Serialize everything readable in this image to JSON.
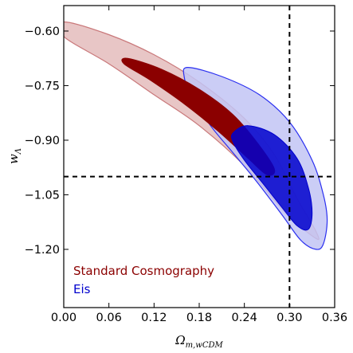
{
  "chart_data": {
    "type": "contour",
    "title": "",
    "xlabel": "Ω",
    "xlabel_sub": "m,wCDM",
    "ylabel": "w",
    "ylabel_sub": "Λ",
    "xlim": [
      0.0,
      0.36
    ],
    "ylim": [
      -1.36,
      -0.53
    ],
    "xticks": [
      0.0,
      0.06,
      0.12,
      0.18,
      0.24,
      0.3,
      0.36
    ],
    "xtick_labels": [
      "0.00",
      "0.06",
      "0.12",
      "0.18",
      "0.24",
      "0.30",
      "0.36"
    ],
    "yticks": [
      -0.6,
      -0.75,
      -0.9,
      -1.05,
      -1.2
    ],
    "ytick_labels": [
      "−0.60",
      "−0.75",
      "−0.90",
      "−1.05",
      "−1.20"
    ],
    "reference_lines": {
      "x": 0.3,
      "y": -1.0
    },
    "grid": false,
    "legend_position": "bottom-left",
    "series": [
      {
        "name": "Standard Cosmography",
        "color": "#8b0000",
        "fill_1sigma": "#c9787a",
        "fill_2sigma": "#e8c6c6",
        "contour_2sigma": [
          [
            0.0,
            -0.575
          ],
          [
            0.06,
            -0.61
          ],
          [
            0.12,
            -0.665
          ],
          [
            0.18,
            -0.74
          ],
          [
            0.24,
            -0.84
          ],
          [
            0.28,
            -0.94
          ],
          [
            0.31,
            -1.06
          ],
          [
            0.335,
            -1.15
          ],
          [
            0.335,
            -1.17
          ],
          [
            0.295,
            -1.1
          ],
          [
            0.24,
            -0.97
          ],
          [
            0.18,
            -0.86
          ],
          [
            0.12,
            -0.775
          ],
          [
            0.06,
            -0.69
          ],
          [
            0.0,
            -0.615
          ]
        ],
        "contour_1sigma": [
          [
            0.085,
            -0.675
          ],
          [
            0.13,
            -0.705
          ],
          [
            0.18,
            -0.76
          ],
          [
            0.225,
            -0.83
          ],
          [
            0.26,
            -0.915
          ],
          [
            0.28,
            -0.98
          ],
          [
            0.27,
            -0.995
          ],
          [
            0.245,
            -0.95
          ],
          [
            0.205,
            -0.875
          ],
          [
            0.16,
            -0.8
          ],
          [
            0.115,
            -0.735
          ],
          [
            0.08,
            -0.69
          ]
        ]
      },
      {
        "name": "Eis",
        "color": "#0000cd",
        "fill_1sigma": "#2a2ff0",
        "fill_2sigma": "#c2c4f4",
        "contour_2sigma": [
          [
            0.165,
            -0.7
          ],
          [
            0.21,
            -0.725
          ],
          [
            0.26,
            -0.775
          ],
          [
            0.3,
            -0.85
          ],
          [
            0.33,
            -0.955
          ],
          [
            0.345,
            -1.05
          ],
          [
            0.35,
            -1.12
          ],
          [
            0.345,
            -1.185
          ],
          [
            0.335,
            -1.2
          ],
          [
            0.315,
            -1.175
          ],
          [
            0.29,
            -1.105
          ],
          [
            0.255,
            -1.01
          ],
          [
            0.225,
            -0.935
          ],
          [
            0.195,
            -0.86
          ],
          [
            0.17,
            -0.78
          ],
          [
            0.16,
            -0.725
          ]
        ],
        "contour_1sigma": [
          [
            0.225,
            -0.88
          ],
          [
            0.245,
            -0.86
          ],
          [
            0.28,
            -0.885
          ],
          [
            0.31,
            -0.95
          ],
          [
            0.325,
            -1.03
          ],
          [
            0.33,
            -1.1
          ],
          [
            0.325,
            -1.145
          ],
          [
            0.31,
            -1.135
          ],
          [
            0.29,
            -1.085
          ],
          [
            0.265,
            -1.02
          ],
          [
            0.24,
            -0.955
          ],
          [
            0.225,
            -0.905
          ]
        ]
      }
    ]
  }
}
